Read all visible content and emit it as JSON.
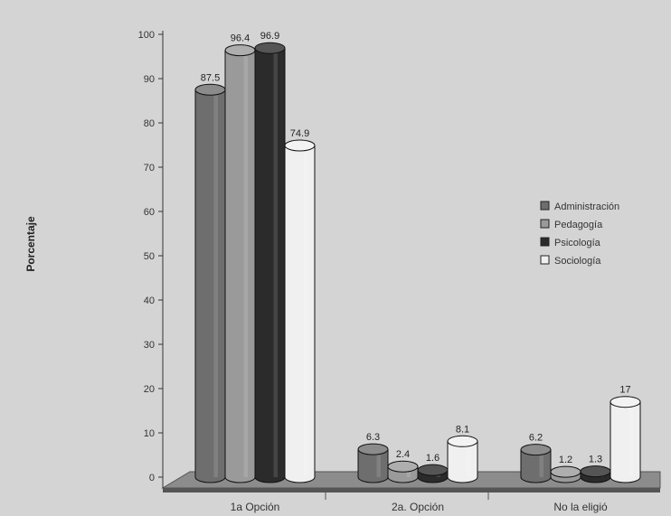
{
  "chart_data": {
    "type": "bar",
    "title": "",
    "xlabel": "",
    "ylabel": "Porcentaje",
    "ylim": [
      0,
      100
    ],
    "yticks": [
      0,
      10,
      20,
      30,
      40,
      50,
      60,
      70,
      80,
      90,
      100
    ],
    "grid": false,
    "legend_position": "right",
    "categories": [
      "1a Opción",
      "2a. Opción",
      "No la eligió"
    ],
    "series": [
      {
        "name": "Administración",
        "values": [
          87.5,
          6.3,
          6.2
        ],
        "labels": [
          "87.5",
          "6.3",
          "6.2"
        ],
        "color": "#6e6e6e"
      },
      {
        "name": "Pedagogía",
        "values": [
          96.4,
          2.4,
          1.2
        ],
        "labels": [
          "96.4",
          "2.4",
          "1.2"
        ],
        "color": "#9a9a9a"
      },
      {
        "name": "Psicología",
        "values": [
          96.9,
          1.6,
          1.3
        ],
        "labels": [
          "96.9",
          "1.6",
          "1.3"
        ],
        "color": "#2b2b2b"
      },
      {
        "name": "Sociología",
        "values": [
          74.9,
          8.1,
          17
        ],
        "labels": [
          "74.9",
          "8.1",
          "17"
        ],
        "color": "#f0f0f0"
      }
    ]
  }
}
